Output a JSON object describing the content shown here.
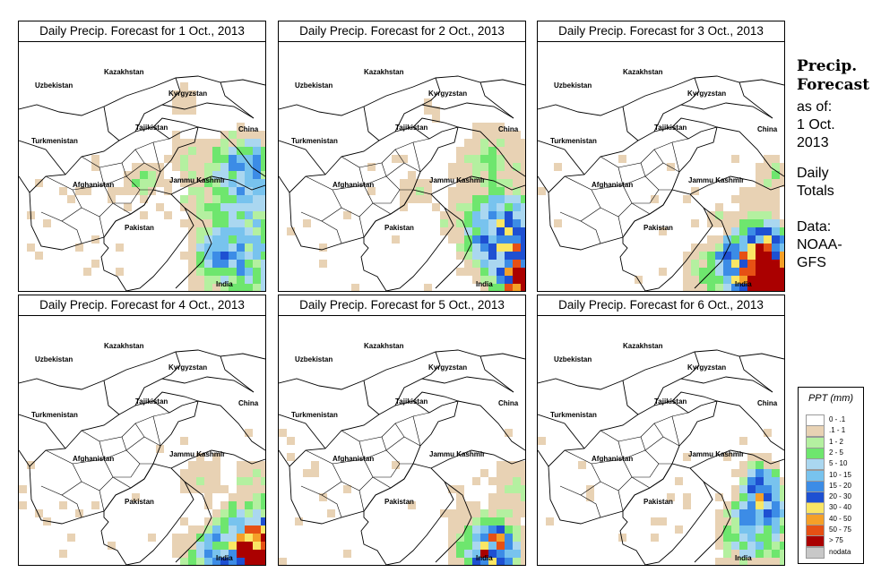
{
  "panels": [
    {
      "title": "Daily Precip. Forecast for  1 Oct., 2013",
      "key": "p1"
    },
    {
      "title": "Daily Precip. Forecast for  2 Oct., 2013",
      "key": "p2"
    },
    {
      "title": "Daily Precip. Forecast for  3 Oct., 2013",
      "key": "p3"
    },
    {
      "title": "Daily Precip. Forecast for  4 Oct., 2013",
      "key": "p4"
    },
    {
      "title": "Daily Precip. Forecast for  5 Oct., 2013",
      "key": "p5"
    },
    {
      "title": "Daily Precip. Forecast for  6 Oct., 2013",
      "key": "p6"
    }
  ],
  "region_labels": {
    "kazakhstan": "Kazakhstan",
    "uzbekistan": "Uzbekistan",
    "kyrgyzstan": "Kyrgyzstan",
    "tajikistan": "Tajikistan",
    "china": "China",
    "turkmenistan": "Turkmenistan",
    "jammu_kashmir": "Jammu Kashmir",
    "afghanistan": "Afghanistan",
    "pakistan": "Pakistan",
    "india": "India"
  },
  "sidebar": {
    "title_line1": "Precip.",
    "title_line2": "Forecast",
    "asof_line1": "as of:",
    "asof_line2": "1 Oct.",
    "asof_line3": "2013",
    "daily_line1": "Daily",
    "daily_line2": "Totals",
    "data_line1": "Data:",
    "data_line2": "NOAA-",
    "data_line3": "GFS"
  },
  "legend": {
    "title": "PPT (mm)",
    "entries": [
      {
        "label": "0 - .1",
        "color": "#ffffff"
      },
      {
        "label": ".1 - 1",
        "color": "#e8d2b4"
      },
      {
        "label": "1 - 2",
        "color": "#b4f0a0"
      },
      {
        "label": "2 - 5",
        "color": "#6ee66e"
      },
      {
        "label": "5 - 10",
        "color": "#aad7f0"
      },
      {
        "label": "10 - 15",
        "color": "#78c3ee"
      },
      {
        "label": "15 - 20",
        "color": "#3c8ce6"
      },
      {
        "label": "20 - 30",
        "color": "#1e50d2"
      },
      {
        "label": "30 - 40",
        "color": "#fae664"
      },
      {
        "label": "40 - 50",
        "color": "#f5a028"
      },
      {
        "label": "50 - 75",
        "color": "#e65014"
      },
      {
        "label": "> 75",
        "color": "#aa0000"
      },
      {
        "label": "nodata",
        "color": "#c8c8c8"
      }
    ]
  }
}
